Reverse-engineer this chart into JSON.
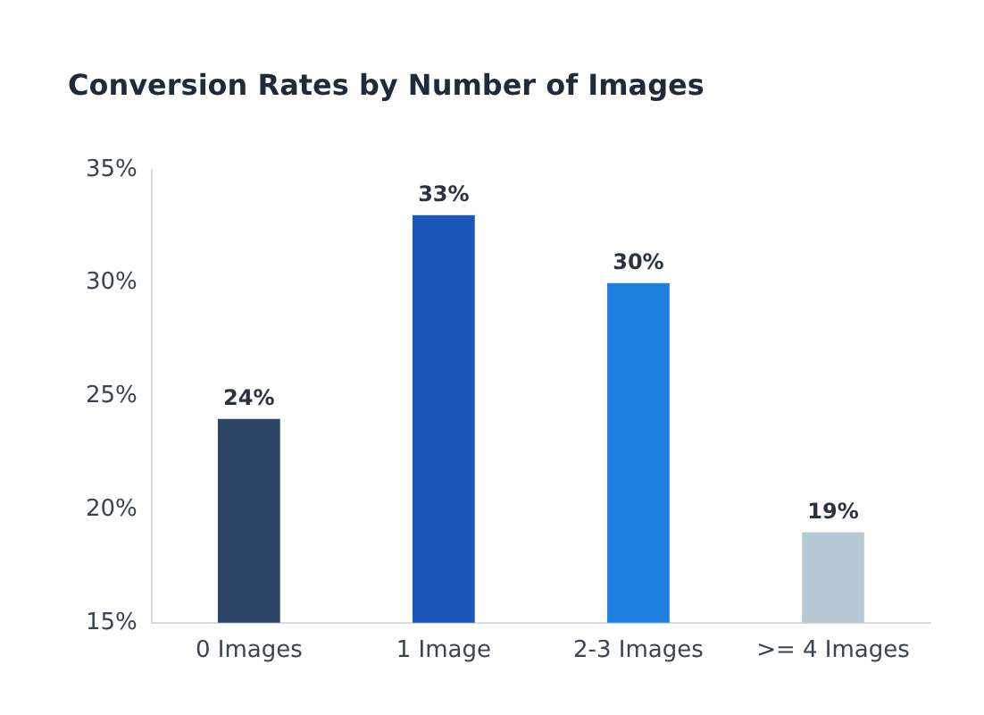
{
  "chart_data": {
    "type": "bar",
    "title": "Conversion Rates by Number of Images",
    "categories": [
      "0 Images",
      "1 Image",
      "2-3 Images",
      ">= 4 Images"
    ],
    "values": [
      24,
      33,
      30,
      19
    ],
    "value_labels": [
      "24%",
      "33%",
      "30%",
      "19%"
    ],
    "colors": [
      "#2c4566",
      "#1957b8",
      "#1e7fe0",
      "#b7cad3"
    ],
    "ylim": [
      15,
      35
    ],
    "yticks": [
      {
        "value": 15,
        "label": "15%"
      },
      {
        "value": 20,
        "label": "20%"
      },
      {
        "value": 25,
        "label": "25%"
      },
      {
        "value": 30,
        "label": "30%"
      },
      {
        "value": 35,
        "label": "35%"
      }
    ],
    "grid": false,
    "legend": false
  }
}
